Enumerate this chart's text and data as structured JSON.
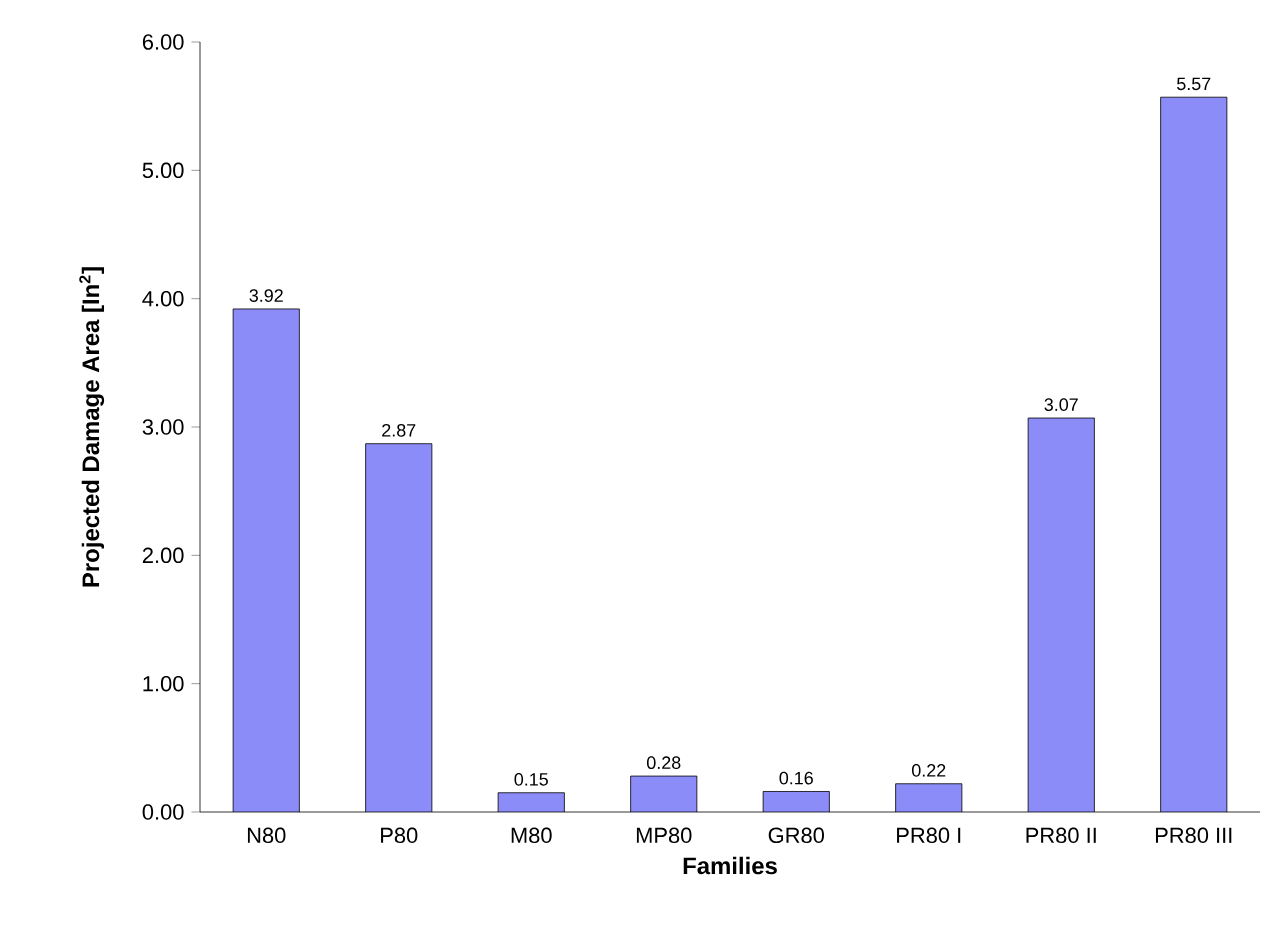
{
  "chart_data": {
    "type": "bar",
    "xlabel": "Families",
    "ylabel": "Projected Damage Area [In$^{2}$]",
    "categories": [
      "N80",
      "P80",
      "M80",
      "MP80",
      "GR80",
      "PR80 I",
      "PR80 II",
      "PR80 III"
    ],
    "values": [
      3.92,
      2.87,
      0.15,
      0.28,
      0.16,
      0.22,
      3.07,
      5.57
    ],
    "color": "#8c8cf8",
    "data_labels": true,
    "grid": false,
    "ylim": [
      0,
      6
    ],
    "yticks": [
      {
        "value": 0,
        "label": "0.00"
      },
      {
        "value": 1,
        "label": "1.00"
      },
      {
        "value": 2,
        "label": "2.00"
      },
      {
        "value": 3,
        "label": "3.00"
      },
      {
        "value": 4,
        "label": "4.00"
      },
      {
        "value": 5,
        "label": "5.00"
      },
      {
        "value": 6,
        "label": "6.00"
      }
    ]
  }
}
